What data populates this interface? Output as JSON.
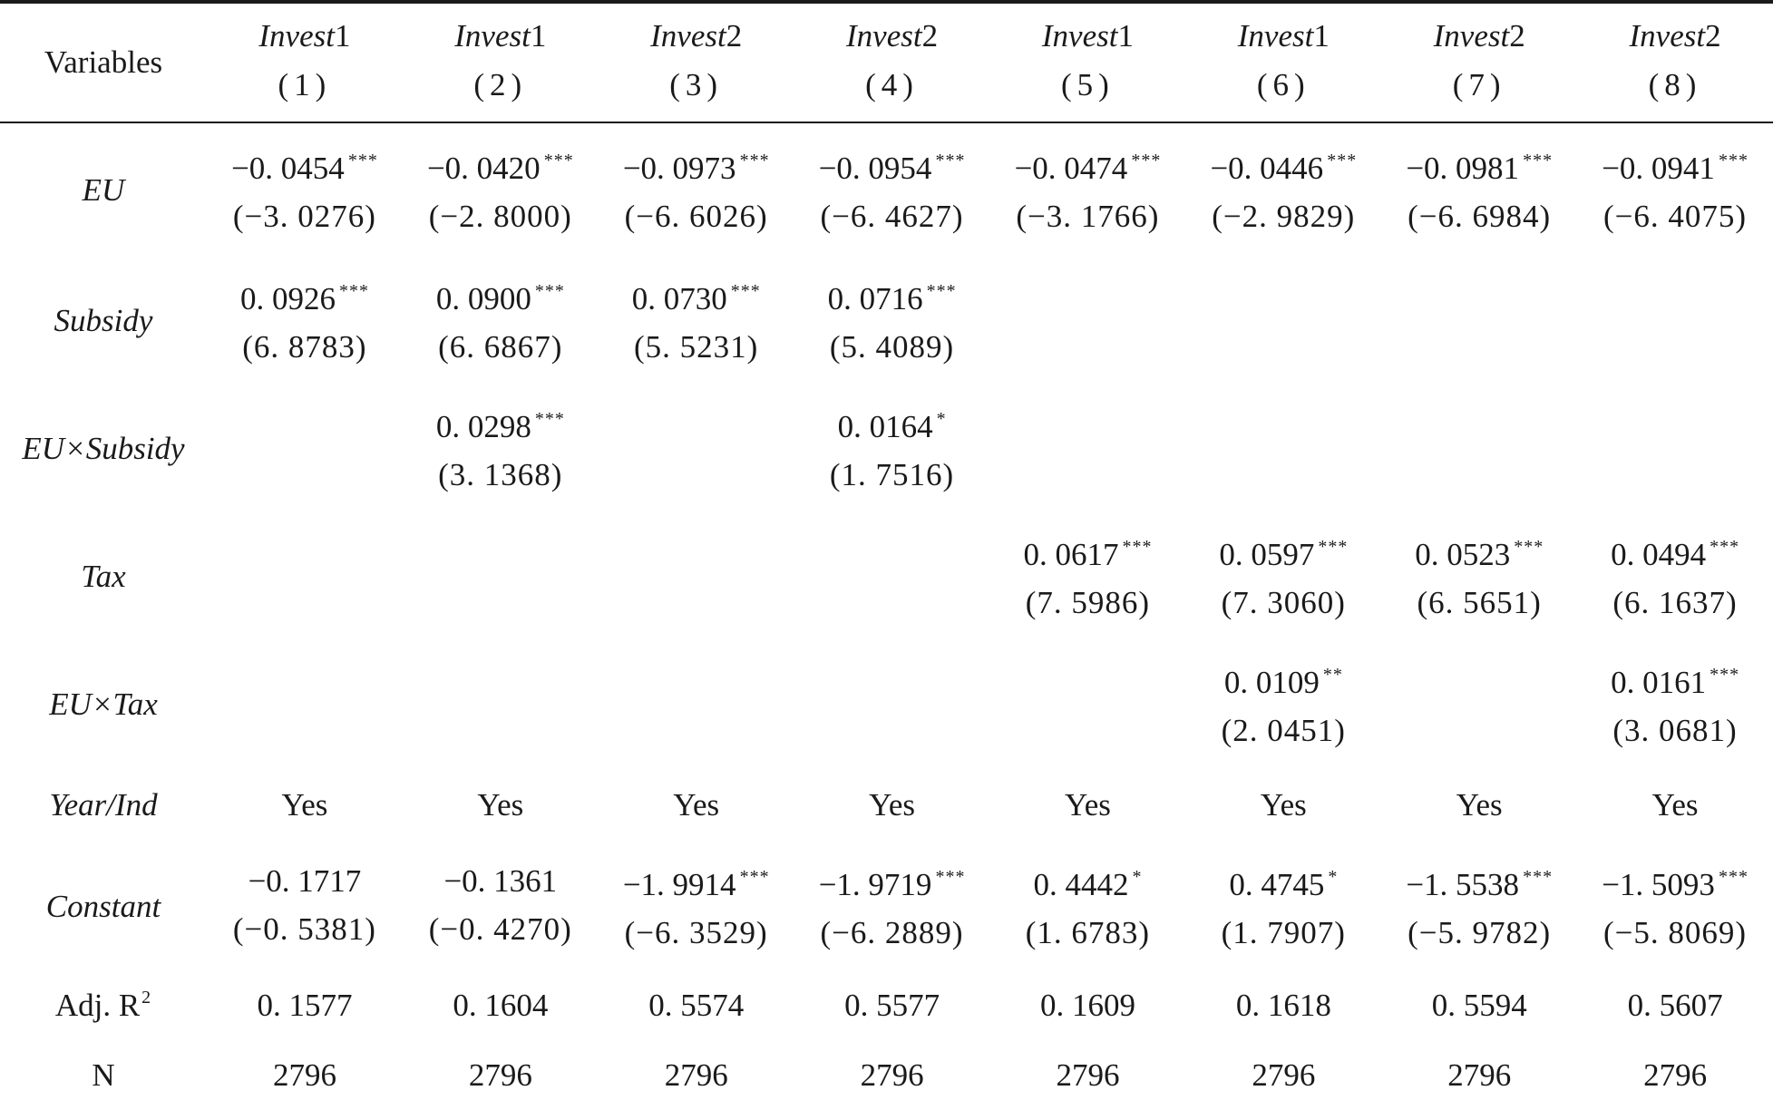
{
  "header": {
    "variables_label": "Variables",
    "columns": [
      {
        "dep_base": "Invest",
        "dep_num": "1",
        "num": "(1)"
      },
      {
        "dep_base": "Invest",
        "dep_num": "1",
        "num": "(2)"
      },
      {
        "dep_base": "Invest",
        "dep_num": "2",
        "num": "(3)"
      },
      {
        "dep_base": "Invest",
        "dep_num": "2",
        "num": "(4)"
      },
      {
        "dep_base": "Invest",
        "dep_num": "1",
        "num": "(5)"
      },
      {
        "dep_base": "Invest",
        "dep_num": "1",
        "num": "(6)"
      },
      {
        "dep_base": "Invest",
        "dep_num": "2",
        "num": "(7)"
      },
      {
        "dep_base": "Invest",
        "dep_num": "2",
        "num": "(8)"
      }
    ]
  },
  "rows": {
    "eu": {
      "label": "EU",
      "cells": [
        {
          "coef": "−0. 0454",
          "stars": "***",
          "t": "(−3. 0276)"
        },
        {
          "coef": "−0. 0420",
          "stars": "***",
          "t": "(−2. 8000)"
        },
        {
          "coef": "−0. 0973",
          "stars": "***",
          "t": "(−6. 6026)"
        },
        {
          "coef": "−0. 0954",
          "stars": "***",
          "t": "(−6. 4627)"
        },
        {
          "coef": "−0. 0474",
          "stars": "***",
          "t": "(−3. 1766)"
        },
        {
          "coef": "−0. 0446",
          "stars": "***",
          "t": "(−2. 9829)"
        },
        {
          "coef": "−0. 0981",
          "stars": "***",
          "t": "(−6. 6984)"
        },
        {
          "coef": "−0. 0941",
          "stars": "***",
          "t": "(−6. 4075)"
        }
      ]
    },
    "subsidy": {
      "label": "Subsidy",
      "cells": [
        {
          "coef": "0. 0926",
          "stars": "***",
          "t": "(6. 8783)"
        },
        {
          "coef": "0. 0900",
          "stars": "***",
          "t": "(6. 6867)"
        },
        {
          "coef": "0. 0730",
          "stars": "***",
          "t": "(5. 5231)"
        },
        {
          "coef": "0. 0716",
          "stars": "***",
          "t": "(5. 4089)"
        },
        {
          "coef": "",
          "stars": "",
          "t": ""
        },
        {
          "coef": "",
          "stars": "",
          "t": ""
        },
        {
          "coef": "",
          "stars": "",
          "t": ""
        },
        {
          "coef": "",
          "stars": "",
          "t": ""
        }
      ]
    },
    "eu_subsidy": {
      "label": "EU×Subsidy",
      "cells": [
        {
          "coef": "",
          "stars": "",
          "t": ""
        },
        {
          "coef": "0. 0298",
          "stars": "***",
          "t": "(3. 1368)"
        },
        {
          "coef": "",
          "stars": "",
          "t": ""
        },
        {
          "coef": "0. 0164",
          "stars": "*",
          "t": "(1. 7516)"
        },
        {
          "coef": "",
          "stars": "",
          "t": ""
        },
        {
          "coef": "",
          "stars": "",
          "t": ""
        },
        {
          "coef": "",
          "stars": "",
          "t": ""
        },
        {
          "coef": "",
          "stars": "",
          "t": ""
        }
      ]
    },
    "tax": {
      "label": "Tax",
      "cells": [
        {
          "coef": "",
          "stars": "",
          "t": ""
        },
        {
          "coef": "",
          "stars": "",
          "t": ""
        },
        {
          "coef": "",
          "stars": "",
          "t": ""
        },
        {
          "coef": "",
          "stars": "",
          "t": ""
        },
        {
          "coef": "0. 0617",
          "stars": "***",
          "t": "(7. 5986)"
        },
        {
          "coef": "0. 0597",
          "stars": "***",
          "t": "(7. 3060)"
        },
        {
          "coef": "0. 0523",
          "stars": "***",
          "t": "(6. 5651)"
        },
        {
          "coef": "0. 0494",
          "stars": "***",
          "t": "(6. 1637)"
        }
      ]
    },
    "eu_tax": {
      "label": "EU×Tax",
      "cells": [
        {
          "coef": "",
          "stars": "",
          "t": ""
        },
        {
          "coef": "",
          "stars": "",
          "t": ""
        },
        {
          "coef": "",
          "stars": "",
          "t": ""
        },
        {
          "coef": "",
          "stars": "",
          "t": ""
        },
        {
          "coef": "",
          "stars": "",
          "t": ""
        },
        {
          "coef": "0. 0109",
          "stars": "**",
          "t": "(2. 0451)"
        },
        {
          "coef": "",
          "stars": "",
          "t": ""
        },
        {
          "coef": "0. 0161",
          "stars": "***",
          "t": "(3. 0681)"
        }
      ]
    },
    "year_ind": {
      "label": "Year/Ind",
      "values": [
        "Yes",
        "Yes",
        "Yes",
        "Yes",
        "Yes",
        "Yes",
        "Yes",
        "Yes"
      ]
    },
    "constant": {
      "label": "Constant",
      "cells": [
        {
          "coef": "−0. 1717",
          "stars": "",
          "t": "(−0. 5381)"
        },
        {
          "coef": "−0. 1361",
          "stars": "",
          "t": "(−0. 4270)"
        },
        {
          "coef": "−1. 9914",
          "stars": "***",
          "t": "(−6. 3529)"
        },
        {
          "coef": "−1. 9719",
          "stars": "***",
          "t": "(−6. 2889)"
        },
        {
          "coef": "0. 4442",
          "stars": "*",
          "t": "(1. 6783)"
        },
        {
          "coef": "0. 4745",
          "stars": "*",
          "t": "(1. 7907)"
        },
        {
          "coef": "−1. 5538",
          "stars": "***",
          "t": "(−5. 9782)"
        },
        {
          "coef": "−1. 5093",
          "stars": "***",
          "t": "(−5. 8069)"
        }
      ]
    },
    "adj_r2": {
      "label": "Adj. R",
      "label_sup": "2",
      "values": [
        "0. 1577",
        "0. 1604",
        "0. 5574",
        "0. 5577",
        "0. 1609",
        "0. 1618",
        "0. 5594",
        "0. 5607"
      ]
    },
    "n": {
      "label": "N",
      "values": [
        "2796",
        "2796",
        "2796",
        "2796",
        "2796",
        "2796",
        "2796",
        "2796"
      ]
    }
  }
}
